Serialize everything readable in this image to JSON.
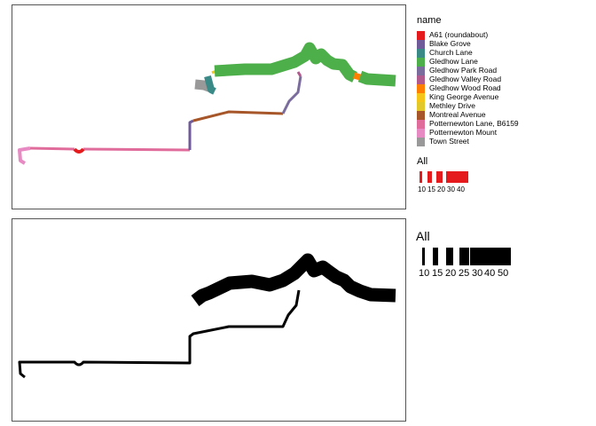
{
  "legend_name": {
    "title": "name",
    "items": [
      {
        "label": "A61 (roundabout)",
        "color": "#E41A1C"
      },
      {
        "label": "Blake Grove",
        "color": "#6F5A9A"
      },
      {
        "label": "Church Lane",
        "color": "#3A8A88"
      },
      {
        "label": "Gledhow Lane",
        "color": "#4DAF4A"
      },
      {
        "label": "Gledhow Park Road",
        "color": "#7A6C9C"
      },
      {
        "label": "Gledhow Valley Road",
        "color": "#B05A8E"
      },
      {
        "label": "Gledhow Wood Road",
        "color": "#FF7F00"
      },
      {
        "label": "King George Avenue",
        "color": "#F5C518"
      },
      {
        "label": "Methley Drive",
        "color": "#E3C82A"
      },
      {
        "label": "Montreal Avenue",
        "color": "#A65628"
      },
      {
        "label": "Potternewton Lane, B6159",
        "color": "#E06C9C"
      },
      {
        "label": "Potternewton Mount",
        "color": "#E78AC3"
      },
      {
        "label": "Town Street",
        "color": "#999999"
      }
    ]
  },
  "legend_all_top": {
    "title": "All",
    "labels": [
      "10",
      "15",
      "20",
      "30",
      "40"
    ],
    "color": "#E41A1C"
  },
  "legend_all_bottom": {
    "title": "All",
    "labels": [
      "10",
      "15",
      "20",
      "25",
      "30",
      "40",
      "50"
    ],
    "color": "#000000"
  }
}
